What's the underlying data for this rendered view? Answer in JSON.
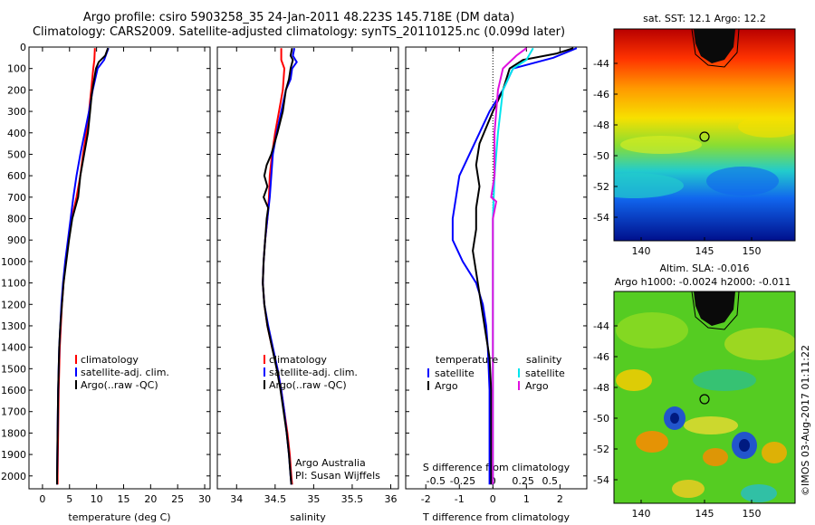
{
  "header": {
    "line1": "Argo profile: csiro 5903258_35 24-Jan-2011 48.223S 145.718E (DM data)",
    "line2": "Climatology: CARS2009. Satellite-adjusted climatology: synTS_20110125.nc (0.099d later)"
  },
  "colors": {
    "climatology": "#ff0000",
    "satellite": "#0000ff",
    "argo": "#000000",
    "cyan": "#00e5ee",
    "magenta": "#e010e0"
  },
  "chart_data": [
    {
      "type": "line",
      "id": "temperature",
      "xlabel": "temperature (deg C)",
      "ylabel": "",
      "xlim": [
        -2.5,
        31
      ],
      "ylim": [
        2060,
        0
      ],
      "xticks": [
        0,
        5,
        10,
        15,
        20,
        25,
        30
      ],
      "yticks": [
        0,
        100,
        200,
        300,
        400,
        500,
        600,
        700,
        800,
        900,
        1000,
        1100,
        1200,
        1300,
        1400,
        1500,
        1600,
        1700,
        1800,
        1900,
        2000
      ],
      "legend": {
        "position": "lower-center",
        "entries": [
          "climatology",
          "satellite-adj. clim.",
          "Argo(..raw -QC)"
        ]
      },
      "series": [
        {
          "name": "climatology",
          "color": "#ff0000",
          "points": [
            [
              9.7,
              5
            ],
            [
              9.6,
              60
            ],
            [
              9.4,
              100
            ],
            [
              9.0,
              200
            ],
            [
              8.6,
              300
            ],
            [
              8.1,
              400
            ],
            [
              7.5,
              500
            ],
            [
              7.0,
              600
            ],
            [
              6.3,
              700
            ],
            [
              5.4,
              800
            ],
            [
              4.8,
              900
            ],
            [
              4.3,
              1000
            ],
            [
              3.9,
              1100
            ],
            [
              3.6,
              1200
            ],
            [
              3.4,
              1300
            ],
            [
              3.2,
              1400
            ],
            [
              3.0,
              1600
            ],
            [
              2.9,
              1800
            ],
            [
              2.8,
              2000
            ],
            [
              2.8,
              2040
            ]
          ]
        },
        {
          "name": "satellite-adj. clim.",
          "color": "#0000ff",
          "points": [
            [
              12.2,
              5
            ],
            [
              11.4,
              60
            ],
            [
              10.2,
              100
            ],
            [
              9.3,
              200
            ],
            [
              8.6,
              300
            ],
            [
              7.8,
              400
            ],
            [
              7.0,
              500
            ],
            [
              6.3,
              600
            ],
            [
              5.7,
              700
            ],
            [
              5.2,
              800
            ],
            [
              4.7,
              900
            ],
            [
              4.2,
              1000
            ],
            [
              3.8,
              1100
            ],
            [
              3.5,
              1200
            ],
            [
              3.3,
              1300
            ],
            [
              3.1,
              1400
            ],
            [
              2.9,
              1600
            ],
            [
              2.8,
              1800
            ],
            [
              2.7,
              2000
            ],
            [
              2.7,
              2040
            ]
          ]
        },
        {
          "name": "Argo(..raw -QC)",
          "color": "#000000",
          "points": [
            [
              12.1,
              5
            ],
            [
              11.6,
              40
            ],
            [
              10.4,
              70
            ],
            [
              9.9,
              100
            ],
            [
              9.5,
              160
            ],
            [
              9.1,
              220
            ],
            [
              8.8,
              300
            ],
            [
              8.4,
              400
            ],
            [
              7.7,
              500
            ],
            [
              7.0,
              600
            ],
            [
              6.6,
              700
            ],
            [
              5.5,
              800
            ],
            [
              4.9,
              900
            ],
            [
              4.4,
              1000
            ],
            [
              3.9,
              1100
            ],
            [
              3.6,
              1200
            ],
            [
              3.3,
              1300
            ],
            [
              3.1,
              1400
            ],
            [
              2.9,
              1600
            ],
            [
              2.8,
              1800
            ],
            [
              2.7,
              2000
            ],
            [
              2.7,
              2040
            ]
          ]
        }
      ]
    },
    {
      "type": "line",
      "id": "salinity",
      "xlabel": "salinity",
      "xlim": [
        33.75,
        36.1
      ],
      "ylim": [
        2060,
        0
      ],
      "xticks": [
        34,
        34.5,
        35,
        35.5,
        36
      ],
      "legend": {
        "position": "lower-center",
        "entries": [
          "climatology",
          "satellite-adj. clim.",
          "Argo(..raw -QC)"
        ]
      },
      "annotation": [
        "Argo Australia",
        "PI: Susan Wijffels"
      ],
      "series": [
        {
          "name": "climatology",
          "color": "#ff0000",
          "points": [
            [
              34.58,
              5
            ],
            [
              34.58,
              60
            ],
            [
              34.62,
              100
            ],
            [
              34.6,
              200
            ],
            [
              34.55,
              300
            ],
            [
              34.5,
              400
            ],
            [
              34.46,
              500
            ],
            [
              34.43,
              600
            ],
            [
              34.42,
              700
            ],
            [
              34.4,
              800
            ],
            [
              34.37,
              900
            ],
            [
              34.35,
              1000
            ],
            [
              34.34,
              1100
            ],
            [
              34.36,
              1200
            ],
            [
              34.4,
              1300
            ],
            [
              34.46,
              1400
            ],
            [
              34.53,
              1500
            ],
            [
              34.58,
              1600
            ],
            [
              34.62,
              1700
            ],
            [
              34.66,
              1800
            ],
            [
              34.69,
              1900
            ],
            [
              34.71,
              2000
            ],
            [
              34.72,
              2040
            ]
          ]
        },
        {
          "name": "satellite-adj. clim.",
          "color": "#0000ff",
          "points": [
            [
              34.75,
              5
            ],
            [
              34.73,
              40
            ],
            [
              34.78,
              70
            ],
            [
              34.72,
              100
            ],
            [
              34.7,
              150
            ],
            [
              34.64,
              200
            ],
            [
              34.58,
              300
            ],
            [
              34.52,
              400
            ],
            [
              34.47,
              500
            ],
            [
              34.45,
              600
            ],
            [
              34.43,
              700
            ],
            [
              34.4,
              800
            ],
            [
              34.37,
              900
            ],
            [
              34.35,
              1000
            ],
            [
              34.34,
              1100
            ],
            [
              34.36,
              1200
            ],
            [
              34.41,
              1300
            ],
            [
              34.47,
              1400
            ],
            [
              34.53,
              1500
            ],
            [
              34.58,
              1600
            ],
            [
              34.62,
              1700
            ],
            [
              34.65,
              1800
            ],
            [
              34.68,
              1900
            ],
            [
              34.7,
              2000
            ],
            [
              34.71,
              2040
            ]
          ]
        },
        {
          "name": "Argo(..raw -QC)",
          "color": "#000000",
          "points": [
            [
              34.72,
              5
            ],
            [
              34.7,
              40
            ],
            [
              34.73,
              60
            ],
            [
              34.7,
              100
            ],
            [
              34.68,
              150
            ],
            [
              34.64,
              200
            ],
            [
              34.6,
              300
            ],
            [
              34.53,
              400
            ],
            [
              34.45,
              500
            ],
            [
              34.39,
              550
            ],
            [
              34.36,
              600
            ],
            [
              34.4,
              650
            ],
            [
              34.35,
              700
            ],
            [
              34.41,
              750
            ],
            [
              34.39,
              800
            ],
            [
              34.37,
              900
            ],
            [
              34.35,
              1000
            ],
            [
              34.34,
              1100
            ],
            [
              34.36,
              1200
            ],
            [
              34.4,
              1300
            ],
            [
              34.46,
              1400
            ],
            [
              34.52,
              1500
            ],
            [
              34.57,
              1600
            ],
            [
              34.61,
              1700
            ],
            [
              34.65,
              1800
            ],
            [
              34.68,
              1900
            ],
            [
              34.7,
              2000
            ],
            [
              34.71,
              2040
            ]
          ]
        }
      ]
    },
    {
      "type": "line",
      "id": "difference",
      "xlabel": "T difference from climatology",
      "xlabel_top": "S difference from climatology",
      "xlim": [
        -2.6,
        2.8
      ],
      "ylim": [
        2060,
        0
      ],
      "xticks": [
        -2,
        -1,
        0,
        1,
        2
      ],
      "xticks_top": [
        "-0.5",
        "-0.25",
        "0",
        "0.25",
        "0.5"
      ],
      "xticks_top_pos": [
        -1.7,
        -0.9,
        0,
        0.9,
        1.7
      ],
      "legend": {
        "position": "lower-center",
        "headers": [
          "temperature",
          "salinity"
        ],
        "entries": [
          "satellite",
          "Argo",
          "satellite",
          "Argo"
        ]
      },
      "series": [
        {
          "name": "satellite",
          "group": "temperature",
          "color": "#0000ff",
          "points": [
            [
              2.5,
              5
            ],
            [
              1.8,
              50
            ],
            [
              0.6,
              100
            ],
            [
              0.3,
              200
            ],
            [
              -0.1,
              300
            ],
            [
              -0.4,
              400
            ],
            [
              -0.7,
              500
            ],
            [
              -1.0,
              600
            ],
            [
              -1.1,
              700
            ],
            [
              -1.2,
              800
            ],
            [
              -1.2,
              900
            ],
            [
              -0.9,
              1000
            ],
            [
              -0.5,
              1100
            ],
            [
              -0.3,
              1200
            ],
            [
              -0.2,
              1300
            ],
            [
              -0.15,
              1400
            ],
            [
              -0.1,
              1600
            ],
            [
              -0.1,
              1800
            ],
            [
              -0.1,
              2000
            ],
            [
              -0.1,
              2040
            ]
          ]
        },
        {
          "name": "Argo",
          "group": "temperature",
          "color": "#000000",
          "points": [
            [
              2.4,
              5
            ],
            [
              1.9,
              30
            ],
            [
              0.9,
              60
            ],
            [
              0.5,
              100
            ],
            [
              0.3,
              200
            ],
            [
              0,
              300
            ],
            [
              -0.4,
              450
            ],
            [
              -0.5,
              550
            ],
            [
              -0.4,
              650
            ],
            [
              -0.5,
              750
            ],
            [
              -0.5,
              850
            ],
            [
              -0.6,
              950
            ],
            [
              -0.5,
              1050
            ],
            [
              -0.4,
              1150
            ],
            [
              -0.3,
              1250
            ],
            [
              -0.2,
              1350
            ],
            [
              -0.1,
              1450
            ],
            [
              -0.05,
              1600
            ],
            [
              -0.05,
              1800
            ],
            [
              -0.05,
              2000
            ],
            [
              -0.05,
              2040
            ]
          ]
        },
        {
          "name": "satellite",
          "group": "salinity",
          "color": "#00e5ee",
          "points": [
            [
              1.2,
              5
            ],
            [
              1.0,
              60
            ],
            [
              0.6,
              100
            ],
            [
              0.3,
              200
            ],
            [
              0.15,
              400
            ],
            [
              0.05,
              600
            ],
            [
              0.0,
              800
            ],
            [
              0.0,
              1000
            ],
            [
              0.0,
              1500
            ],
            [
              0.0,
              2040
            ]
          ]
        },
        {
          "name": "Argo",
          "group": "salinity",
          "color": "#e010e0",
          "points": [
            [
              1.0,
              5
            ],
            [
              0.7,
              40
            ],
            [
              0.3,
              100
            ],
            [
              0.15,
              200
            ],
            [
              0.05,
              400
            ],
            [
              0.05,
              600
            ],
            [
              -0.05,
              700
            ],
            [
              0.1,
              720
            ],
            [
              0.0,
              800
            ],
            [
              0.0,
              1000
            ],
            [
              0.0,
              1500
            ],
            [
              0.0,
              2040
            ]
          ]
        }
      ]
    }
  ],
  "maps": {
    "sst": {
      "title": "sat. SST: 12.1  Argo: 12.2",
      "xticks": [
        "140",
        "145",
        "150"
      ],
      "yticks": [
        "-44",
        "-46",
        "-48",
        "-50",
        "-52",
        "-54"
      ]
    },
    "sla": {
      "title1": "Altim. SLA: -0.016",
      "title2": "Argo h1000: -0.0024 h2000: -0.011",
      "xticks": [
        "140",
        "145",
        "150"
      ],
      "yticks": [
        "-44",
        "-46",
        "-48",
        "-50",
        "-52",
        "-54"
      ]
    }
  },
  "footer": {
    "stamp": "©IMOS 03-Aug-2017 01:11:22"
  }
}
